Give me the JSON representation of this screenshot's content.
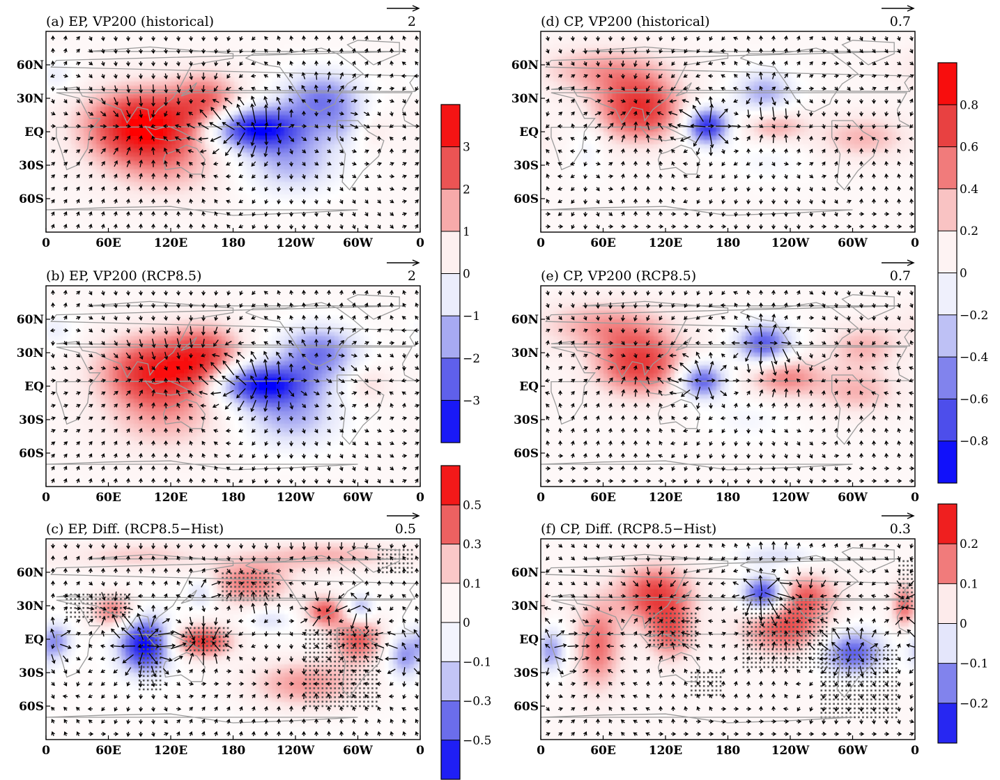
{
  "chart_data": [
    {
      "id": "a",
      "type": "heatmap",
      "title": "(a) EP, VP200 (historical)",
      "ref_vector": "2",
      "x_ticks": [
        "0",
        "60E",
        "120E",
        "180",
        "120W",
        "60W",
        "0"
      ],
      "y_ticks": [
        "60N",
        "30N",
        "EQ",
        "30S",
        "60S"
      ],
      "xlim": [
        0,
        360
      ],
      "ylim": [
        -90,
        90
      ],
      "value_range": 4,
      "centers": [
        {
          "lon": 95,
          "lat": 5,
          "value": 3.9,
          "rx": 55,
          "ry": 32
        },
        {
          "lon": 155,
          "lat": 28,
          "value": 1.8,
          "rx": 32,
          "ry": 26
        },
        {
          "lon": 118,
          "lat": -35,
          "value": 0.9,
          "rx": 60,
          "ry": 28
        },
        {
          "lon": 200,
          "lat": 3,
          "value": -4.0,
          "rx": 45,
          "ry": 18
        },
        {
          "lon": 265,
          "lat": 30,
          "value": -2.4,
          "rx": 38,
          "ry": 24
        },
        {
          "lon": 235,
          "lat": -25,
          "value": -1.8,
          "rx": 48,
          "ry": 30
        },
        {
          "lon": 290,
          "lat": 5,
          "value": -1.0,
          "rx": 25,
          "ry": 18
        },
        {
          "lon": 310,
          "lat": 2,
          "value": 0.8,
          "rx": 20,
          "ry": 16
        },
        {
          "lon": 10,
          "lat": 50,
          "value": -0.7,
          "rx": 20,
          "ry": 16
        }
      ],
      "base": 0.25,
      "stipple": []
    },
    {
      "id": "b",
      "type": "heatmap",
      "title": "(b) EP, VP200 (RCP8.5)",
      "ref_vector": "2",
      "x_ticks": [
        "0",
        "60E",
        "120E",
        "180",
        "120W",
        "60W",
        "0"
      ],
      "y_ticks": [
        "60N",
        "30N",
        "EQ",
        "30S",
        "60S"
      ],
      "xlim": [
        0,
        360
      ],
      "ylim": [
        -90,
        90
      ],
      "value_range": 4,
      "centers": [
        {
          "lon": 110,
          "lat": 12,
          "value": 3.4,
          "rx": 55,
          "ry": 32
        },
        {
          "lon": 155,
          "lat": 30,
          "value": 1.8,
          "rx": 32,
          "ry": 26
        },
        {
          "lon": 115,
          "lat": -35,
          "value": 0.9,
          "rx": 60,
          "ry": 28
        },
        {
          "lon": 205,
          "lat": 2,
          "value": -3.8,
          "rx": 45,
          "ry": 18
        },
        {
          "lon": 262,
          "lat": 30,
          "value": -2.5,
          "rx": 38,
          "ry": 24
        },
        {
          "lon": 235,
          "lat": -25,
          "value": -1.8,
          "rx": 48,
          "ry": 30
        },
        {
          "lon": 310,
          "lat": 2,
          "value": 0.8,
          "rx": 20,
          "ry": 16
        },
        {
          "lon": 10,
          "lat": 50,
          "value": -0.7,
          "rx": 20,
          "ry": 16
        }
      ],
      "base": 0.25,
      "stipple": []
    },
    {
      "id": "c",
      "type": "heatmap",
      "title": "(c) EP, Diff. (RCP8.5−Hist)",
      "ref_vector": "0.5",
      "x_ticks": [
        "0",
        "60E",
        "120E",
        "180",
        "120W",
        "60W",
        "0"
      ],
      "y_ticks": [
        "60N",
        "30N",
        "EQ",
        "30S",
        "60S"
      ],
      "xlim": [
        0,
        360
      ],
      "ylim": [
        -90,
        90
      ],
      "value_range": 0.6,
      "centers": [
        {
          "lon": 95,
          "lat": -5,
          "value": -0.62,
          "rx": 24,
          "ry": 24
        },
        {
          "lon": 10,
          "lat": -2,
          "value": -0.3,
          "rx": 14,
          "ry": 16
        },
        {
          "lon": 345,
          "lat": -15,
          "value": -0.3,
          "rx": 16,
          "ry": 20
        },
        {
          "lon": 150,
          "lat": -2,
          "value": 0.45,
          "rx": 28,
          "ry": 14
        },
        {
          "lon": 65,
          "lat": 25,
          "value": 0.3,
          "rx": 22,
          "ry": 16
        },
        {
          "lon": 195,
          "lat": 50,
          "value": 0.3,
          "rx": 40,
          "ry": 20
        },
        {
          "lon": 268,
          "lat": 25,
          "value": 0.35,
          "rx": 18,
          "ry": 14
        },
        {
          "lon": 300,
          "lat": 0,
          "value": 0.35,
          "rx": 25,
          "ry": 20
        },
        {
          "lon": 250,
          "lat": -40,
          "value": 0.25,
          "rx": 55,
          "ry": 22
        },
        {
          "lon": 270,
          "lat": 75,
          "value": 0.2,
          "rx": 70,
          "ry": 14
        },
        {
          "lon": 150,
          "lat": 42,
          "value": -0.2,
          "rx": 14,
          "ry": 14
        },
        {
          "lon": 303,
          "lat": 28,
          "value": -0.25,
          "rx": 12,
          "ry": 12
        },
        {
          "lon": 215,
          "lat": 18,
          "value": -0.15,
          "rx": 20,
          "ry": 10
        },
        {
          "lon": 90,
          "lat": 75,
          "value": 0.15,
          "rx": 70,
          "ry": 14
        }
      ],
      "base": 0.02,
      "stipple": [
        [
          20,
          80,
          20,
          40
        ],
        [
          90,
          110,
          -45,
          10
        ],
        [
          135,
          175,
          -10,
          10
        ],
        [
          170,
          220,
          35,
          60
        ],
        [
          250,
          320,
          -60,
          10
        ],
        [
          320,
          355,
          60,
          80
        ]
      ]
    },
    {
      "id": "d",
      "type": "heatmap",
      "title": "(d) CP, VP200 (historical)",
      "ref_vector": "0.7",
      "x_ticks": [
        "0",
        "60E",
        "120E",
        "180",
        "120W",
        "60W",
        "0"
      ],
      "y_ticks": [
        "60N",
        "30N",
        "EQ",
        "30S",
        "60S"
      ],
      "xlim": [
        0,
        360
      ],
      "ylim": [
        -90,
        90
      ],
      "value_range": 1.0,
      "centers": [
        {
          "lon": 95,
          "lat": 20,
          "value": 0.75,
          "rx": 40,
          "ry": 28
        },
        {
          "lon": 60,
          "lat": 55,
          "value": 0.35,
          "rx": 60,
          "ry": 22
        },
        {
          "lon": 160,
          "lat": 5,
          "value": -0.95,
          "rx": 20,
          "ry": 16
        },
        {
          "lon": 215,
          "lat": 35,
          "value": -0.45,
          "rx": 28,
          "ry": 20
        },
        {
          "lon": 225,
          "lat": 5,
          "value": 0.35,
          "rx": 30,
          "ry": 15
        },
        {
          "lon": 310,
          "lat": -5,
          "value": 0.3,
          "rx": 45,
          "ry": 20
        },
        {
          "lon": 45,
          "lat": -15,
          "value": -0.15,
          "rx": 15,
          "ry": 24
        },
        {
          "lon": 220,
          "lat": -25,
          "value": -0.12,
          "rx": 40,
          "ry": 20
        }
      ],
      "base": 0.06,
      "stipple": []
    },
    {
      "id": "e",
      "type": "heatmap",
      "title": "(e) CP, VP200 (RCP8.5)",
      "ref_vector": "0.7",
      "x_ticks": [
        "0",
        "60E",
        "120E",
        "180",
        "120W",
        "60W",
        "0"
      ],
      "y_ticks": [
        "60N",
        "30N",
        "EQ",
        "30S",
        "60S"
      ],
      "xlim": [
        0,
        360
      ],
      "ylim": [
        -90,
        90
      ],
      "value_range": 1.0,
      "centers": [
        {
          "lon": 95,
          "lat": 20,
          "value": 0.7,
          "rx": 42,
          "ry": 28
        },
        {
          "lon": 60,
          "lat": 55,
          "value": 0.35,
          "rx": 60,
          "ry": 22
        },
        {
          "lon": 155,
          "lat": 5,
          "value": -0.75,
          "rx": 22,
          "ry": 16
        },
        {
          "lon": 215,
          "lat": 38,
          "value": -0.75,
          "rx": 26,
          "ry": 18
        },
        {
          "lon": 235,
          "lat": 8,
          "value": 0.45,
          "rx": 35,
          "ry": 18
        },
        {
          "lon": 310,
          "lat": 35,
          "value": 0.3,
          "rx": 35,
          "ry": 20
        },
        {
          "lon": 305,
          "lat": -5,
          "value": 0.3,
          "rx": 40,
          "ry": 20
        },
        {
          "lon": 200,
          "lat": -30,
          "value": -0.12,
          "rx": 40,
          "ry": 20
        }
      ],
      "base": 0.06,
      "stipple": []
    },
    {
      "id": "f",
      "type": "heatmap",
      "title": "(f) CP, Diff. (RCP8.5−Hist)",
      "ref_vector": "0.3",
      "x_ticks": [
        "0",
        "60E",
        "120E",
        "180",
        "120W",
        "60W",
        "0"
      ],
      "y_ticks": [
        "60N",
        "30N",
        "EQ",
        "30S",
        "60S"
      ],
      "xlim": [
        0,
        360
      ],
      "ylim": [
        -90,
        90
      ],
      "value_range": 0.3,
      "centers": [
        {
          "lon": 215,
          "lat": 40,
          "value": -0.28,
          "rx": 20,
          "ry": 16
        },
        {
          "lon": 300,
          "lat": -12,
          "value": -0.22,
          "rx": 30,
          "ry": 20
        },
        {
          "lon": 10,
          "lat": -10,
          "value": -0.15,
          "rx": 15,
          "ry": 20
        },
        {
          "lon": 110,
          "lat": 40,
          "value": 0.2,
          "rx": 35,
          "ry": 26
        },
        {
          "lon": 55,
          "lat": -5,
          "value": 0.15,
          "rx": 22,
          "ry": 40
        },
        {
          "lon": 125,
          "lat": 5,
          "value": 0.15,
          "rx": 22,
          "ry": 24
        },
        {
          "lon": 235,
          "lat": 10,
          "value": 0.18,
          "rx": 40,
          "ry": 22
        },
        {
          "lon": 255,
          "lat": 40,
          "value": 0.15,
          "rx": 30,
          "ry": 18
        },
        {
          "lon": 350,
          "lat": 30,
          "value": 0.15,
          "rx": 12,
          "ry": 20
        },
        {
          "lon": 225,
          "lat": 75,
          "value": -0.08,
          "rx": 40,
          "ry": 10
        }
      ],
      "base": 0.02,
      "stipple": [
        [
          105,
          150,
          -5,
          25
        ],
        [
          195,
          275,
          -25,
          35
        ],
        [
          270,
          345,
          -70,
          -10
        ],
        [
          145,
          175,
          -50,
          -30
        ],
        [
          345,
          360,
          30,
          70
        ]
      ]
    }
  ],
  "colorbars": [
    {
      "id": "cb1",
      "levels": [
        4,
        3,
        2,
        1,
        0,
        -1,
        -2,
        -3,
        -4
      ],
      "labels": [
        "3",
        "2",
        "1",
        "0",
        "−1",
        "−2",
        "−3"
      ]
    },
    {
      "id": "cb2",
      "levels": [
        0.7,
        0.5,
        0.3,
        0.1,
        0,
        -0.1,
        -0.3,
        -0.5,
        -0.7
      ],
      "labels": [
        "0.5",
        "0.3",
        "0.1",
        "0",
        "−0.1",
        "−0.3",
        "−0.5"
      ]
    },
    {
      "id": "cb3",
      "levels": [
        1.0,
        0.8,
        0.6,
        0.4,
        0.2,
        0,
        -0.2,
        -0.4,
        -0.6,
        -0.8,
        -1.0
      ],
      "labels": [
        "0.8",
        "0.6",
        "0.4",
        "0.2",
        "0",
        "−0.2",
        "−0.4",
        "−0.6",
        "−0.8"
      ]
    },
    {
      "id": "cb4",
      "levels": [
        0.3,
        0.2,
        0.1,
        0,
        -0.1,
        -0.2,
        -0.3
      ],
      "labels": [
        "0.2",
        "0.1",
        "0",
        "−0.1",
        "−0.2"
      ]
    }
  ]
}
